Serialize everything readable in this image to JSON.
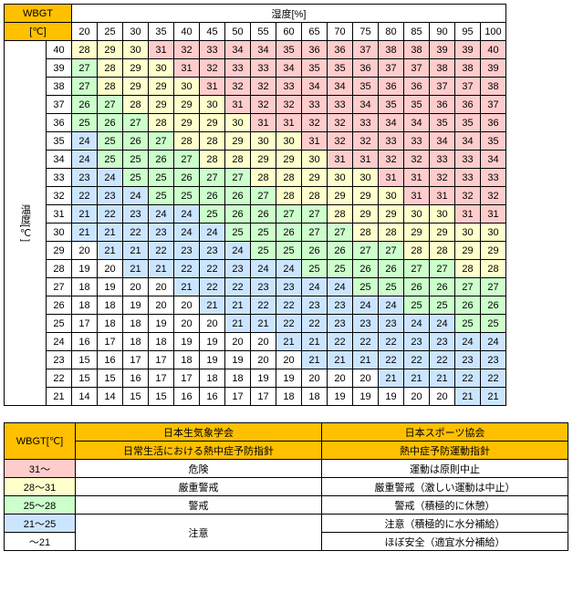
{
  "main": {
    "corner_top": "WBGT",
    "corner_bottom": "[℃]",
    "humidity_header": "湿度[%]",
    "temp_header": "温度[℃]",
    "humidity_cols": [
      20,
      25,
      30,
      35,
      40,
      45,
      50,
      55,
      60,
      65,
      70,
      75,
      80,
      85,
      90,
      95,
      100
    ],
    "temp_rows": [
      40,
      39,
      38,
      37,
      36,
      35,
      34,
      33,
      32,
      31,
      30,
      29,
      28,
      27,
      26,
      25,
      24,
      23,
      22,
      21
    ],
    "values": [
      [
        28,
        29,
        30,
        31,
        32,
        33,
        34,
        34,
        35,
        36,
        36,
        37,
        38,
        38,
        39,
        39,
        40
      ],
      [
        27,
        28,
        29,
        30,
        31,
        32,
        33,
        33,
        34,
        35,
        35,
        36,
        37,
        37,
        38,
        38,
        39
      ],
      [
        27,
        28,
        29,
        29,
        30,
        31,
        32,
        32,
        33,
        34,
        34,
        35,
        36,
        36,
        37,
        37,
        38
      ],
      [
        26,
        27,
        28,
        29,
        29,
        30,
        31,
        32,
        32,
        33,
        33,
        34,
        35,
        35,
        36,
        36,
        37
      ],
      [
        25,
        26,
        27,
        28,
        29,
        29,
        30,
        31,
        31,
        32,
        32,
        33,
        34,
        34,
        35,
        35,
        36
      ],
      [
        24,
        25,
        26,
        27,
        28,
        28,
        29,
        30,
        30,
        31,
        32,
        32,
        33,
        33,
        34,
        34,
        35
      ],
      [
        24,
        25,
        25,
        26,
        27,
        28,
        28,
        29,
        29,
        30,
        31,
        31,
        32,
        32,
        33,
        33,
        34
      ],
      [
        23,
        24,
        25,
        25,
        26,
        27,
        27,
        28,
        28,
        29,
        30,
        30,
        31,
        31,
        32,
        33,
        33
      ],
      [
        22,
        23,
        24,
        25,
        25,
        26,
        26,
        27,
        28,
        28,
        29,
        29,
        30,
        31,
        31,
        32,
        32
      ],
      [
        21,
        22,
        23,
        24,
        24,
        25,
        26,
        26,
        27,
        27,
        28,
        29,
        29,
        30,
        30,
        31,
        31
      ],
      [
        21,
        21,
        22,
        23,
        24,
        24,
        25,
        25,
        26,
        27,
        27,
        28,
        28,
        29,
        29,
        30,
        30
      ],
      [
        20,
        21,
        21,
        22,
        23,
        23,
        24,
        25,
        25,
        26,
        26,
        27,
        27,
        28,
        28,
        29,
        29
      ],
      [
        19,
        20,
        21,
        21,
        22,
        22,
        23,
        24,
        24,
        25,
        25,
        26,
        26,
        27,
        27,
        28,
        28
      ],
      [
        18,
        19,
        20,
        20,
        21,
        22,
        22,
        23,
        23,
        24,
        24,
        25,
        25,
        26,
        26,
        27,
        27
      ],
      [
        18,
        18,
        19,
        20,
        20,
        21,
        21,
        22,
        22,
        23,
        23,
        24,
        24,
        25,
        25,
        26,
        26
      ],
      [
        17,
        18,
        18,
        19,
        20,
        20,
        21,
        21,
        22,
        22,
        23,
        23,
        23,
        24,
        24,
        25,
        25
      ],
      [
        16,
        17,
        18,
        18,
        19,
        19,
        20,
        20,
        21,
        21,
        22,
        22,
        22,
        23,
        23,
        24,
        24
      ],
      [
        15,
        16,
        17,
        17,
        18,
        19,
        19,
        20,
        20,
        21,
        21,
        21,
        22,
        22,
        22,
        23,
        23
      ],
      [
        15,
        15,
        16,
        17,
        17,
        18,
        18,
        19,
        19,
        20,
        20,
        20,
        21,
        21,
        21,
        22,
        22
      ],
      [
        14,
        14,
        15,
        15,
        16,
        16,
        17,
        17,
        18,
        18,
        19,
        19,
        19,
        20,
        20,
        21,
        21
      ]
    ]
  },
  "colors": {
    "header": "#ffc000",
    "t5_red": "#ffcccc",
    "t4_yel": "#ffffcc",
    "t3_grn": "#ccffcc",
    "t2_blu": "#cce5ff",
    "t1_non": "#ffffff"
  },
  "thresholds": {
    "t5": 31,
    "t4": 28,
    "t3": 25,
    "t2": 21
  },
  "legend": {
    "h_wbgt": "WBGT[℃]",
    "h_left1": "日本生気象学会",
    "h_left2": "日常生活における熱中症予防指針",
    "h_right1": "日本スポーツ協会",
    "h_right2": "熱中症予防運動指針",
    "rows": [
      {
        "range": "31～",
        "left": "危険",
        "right": "運動は原則中止",
        "color": "t5_red"
      },
      {
        "range": "28～31",
        "left": "厳重警戒",
        "right": "厳重警戒（激しい運動は中止）",
        "color": "t4_yel"
      },
      {
        "range": "25～28",
        "left": "警戒",
        "right": "警戒（積極的に休憩）",
        "color": "t3_grn"
      },
      {
        "range": "21～25",
        "left": "注意",
        "right": "注意（積極的に水分補給）",
        "color": "t2_blu",
        "merge_left": true
      },
      {
        "range": "～21",
        "left": "",
        "right": "ほぼ安全（適宜水分補給）",
        "color": "t1_non"
      }
    ]
  }
}
